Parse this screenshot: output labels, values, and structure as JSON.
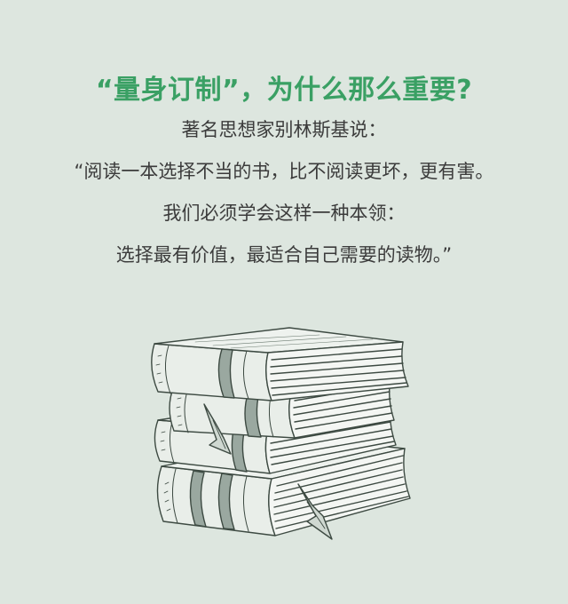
{
  "headline": "“量身订制”，为什么那么重要?",
  "quote": {
    "attribution": "著名思想家别林斯基说：",
    "line1": "“阅读一本选择不当的书，比不阅读更坏，更有害。",
    "line2": "我们必须学会这样一种本领：",
    "line3": "选择最有价值，最适合自己需要的读物。”"
  },
  "illustration": {
    "icon": "book-stack-icon",
    "ink_color": "#3d4a42",
    "accent_color": "#3aa064",
    "background_color": "#dde6df"
  }
}
